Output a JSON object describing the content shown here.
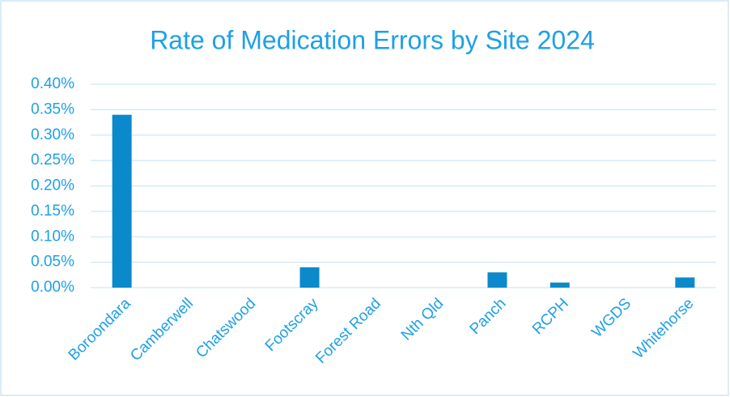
{
  "chart_data": {
    "type": "bar",
    "title": "Rate of Medication Errors by Site 2024",
    "categories": [
      "Boroondara",
      "Camberwell",
      "Chatswood",
      "Footscray",
      "Forest Road",
      "Nth Qld",
      "Panch",
      "RCPH",
      "WGDS",
      "Whitehorse"
    ],
    "values": [
      0.34,
      0,
      0,
      0.04,
      0,
      0,
      0.03,
      0.01,
      0,
      0.02
    ],
    "color": "#0a8acb",
    "ylim": [
      0,
      0.4
    ],
    "yticks": [
      {
        "value": 0,
        "label": "0.00%"
      },
      {
        "value": 0.05,
        "label": "0.05%"
      },
      {
        "value": 0.1,
        "label": "0.10%"
      },
      {
        "value": 0.15,
        "label": "0.15%"
      },
      {
        "value": 0.2,
        "label": "0.20%"
      },
      {
        "value": 0.25,
        "label": "0.25%"
      },
      {
        "value": 0.3,
        "label": "0.30%"
      },
      {
        "value": 0.35,
        "label": "0.35%"
      },
      {
        "value": 0.4,
        "label": "0.40%"
      }
    ],
    "grid": true
  }
}
